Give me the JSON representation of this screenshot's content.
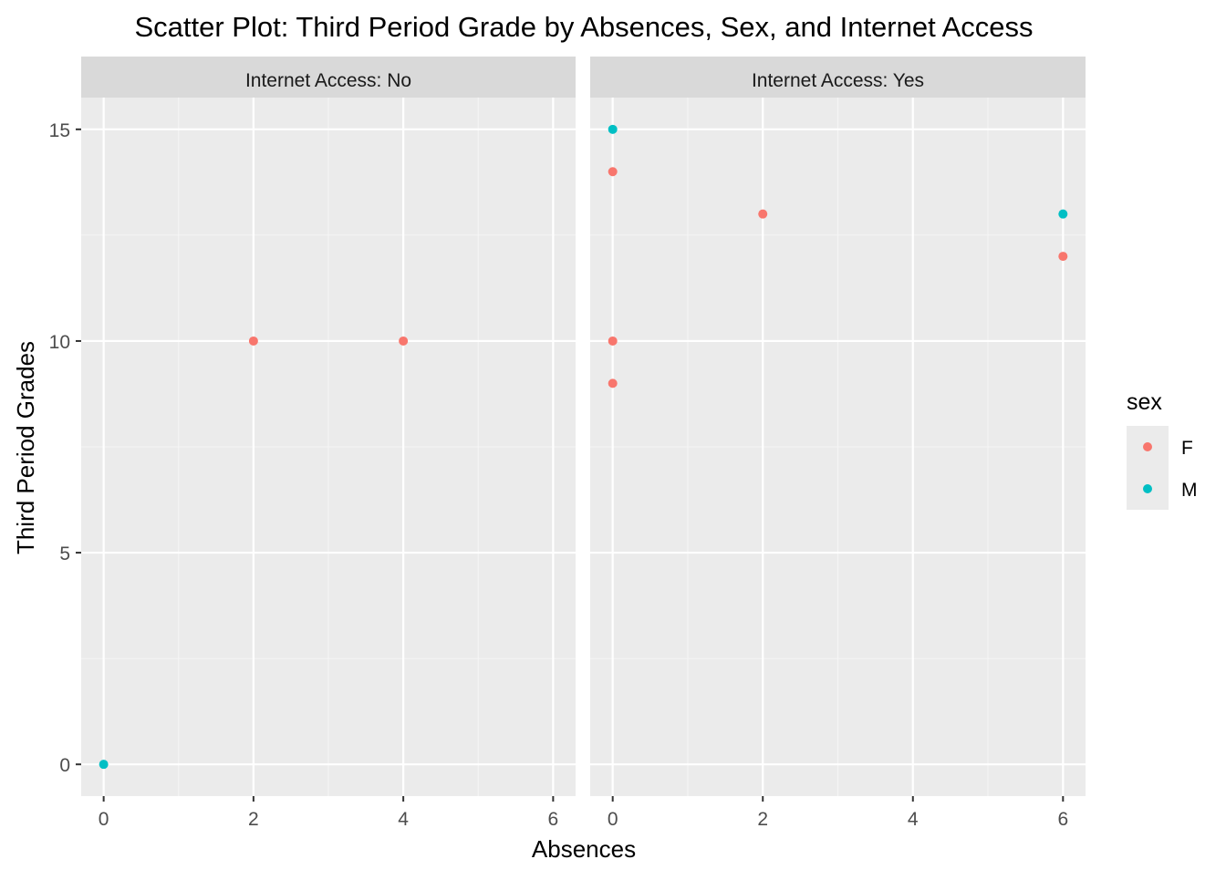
{
  "chart_data": {
    "type": "scatter",
    "title": "Scatter Plot: Third Period Grade by Absences, Sex, and Internet Access",
    "xlabel": "Absences",
    "ylabel": "Third Period Grades",
    "xlim": [
      -0.3,
      6.3
    ],
    "ylim": [
      -0.75,
      15.75
    ],
    "x_ticks": [
      0,
      2,
      4,
      6
    ],
    "x_tick_labels": [
      "0",
      "2",
      "4",
      "6"
    ],
    "y_ticks": [
      0,
      5,
      10,
      15
    ],
    "y_tick_labels": [
      "0",
      "5",
      "10",
      "15"
    ],
    "grid": true,
    "facet_variable": "internet",
    "panels": [
      {
        "label": "Internet Access: No",
        "points": [
          {
            "x": 0,
            "y": 0,
            "sex": "M"
          },
          {
            "x": 2,
            "y": 10,
            "sex": "F"
          },
          {
            "x": 4,
            "y": 10,
            "sex": "F"
          }
        ]
      },
      {
        "label": "Internet Access: Yes",
        "points": [
          {
            "x": 0,
            "y": 15,
            "sex": "M"
          },
          {
            "x": 0,
            "y": 14,
            "sex": "F"
          },
          {
            "x": 0,
            "y": 10,
            "sex": "F"
          },
          {
            "x": 0,
            "y": 9,
            "sex": "F"
          },
          {
            "x": 2,
            "y": 13,
            "sex": "F"
          },
          {
            "x": 6,
            "y": 13,
            "sex": "M"
          },
          {
            "x": 6,
            "y": 12,
            "sex": "F"
          }
        ]
      }
    ],
    "legend": {
      "title": "sex",
      "position": "right",
      "entries": [
        {
          "label": "F",
          "color": "#F8766D"
        },
        {
          "label": "M",
          "color": "#00BFC4"
        }
      ]
    },
    "colors": {
      "panel_background": "#EBEBEB",
      "strip_background": "#D9D9D9",
      "grid_major": "#FFFFFF",
      "grid_minor": "#F5F5F5",
      "axis_text": "#4D4D4D",
      "text": "#000000"
    }
  }
}
